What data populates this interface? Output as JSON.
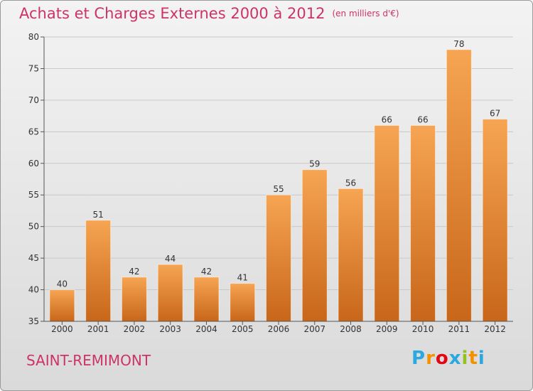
{
  "chart_data": {
    "type": "bar",
    "title": "Achats et Charges Externes 2000 à 2012",
    "subtitle": "(en milliers d'€)",
    "categories": [
      "2000",
      "2001",
      "2002",
      "2003",
      "2004",
      "2005",
      "2006",
      "2007",
      "2008",
      "2009",
      "2010",
      "2011",
      "2012"
    ],
    "values": [
      40,
      51,
      42,
      44,
      42,
      41,
      55,
      59,
      56,
      66,
      66,
      78,
      67
    ],
    "ylim": [
      35,
      80
    ],
    "yticks": [
      35,
      40,
      45,
      50,
      55,
      60,
      65,
      70,
      75,
      80
    ],
    "grid": true,
    "bar_color_top": "#f6a552",
    "bar_color_bottom": "#c8661a"
  },
  "footer": {
    "city": "SAINT-REMIMONT",
    "logo_letters": [
      "P",
      "r",
      "o",
      "x",
      "i",
      "t",
      "i"
    ],
    "logo_colors": [
      "#2aa8e0",
      "#f39200",
      "#e30613",
      "#2aa8e0",
      "#95c11f",
      "#f39200",
      "#2aa8e0"
    ]
  },
  "colors": {
    "title": "#cc3366"
  }
}
